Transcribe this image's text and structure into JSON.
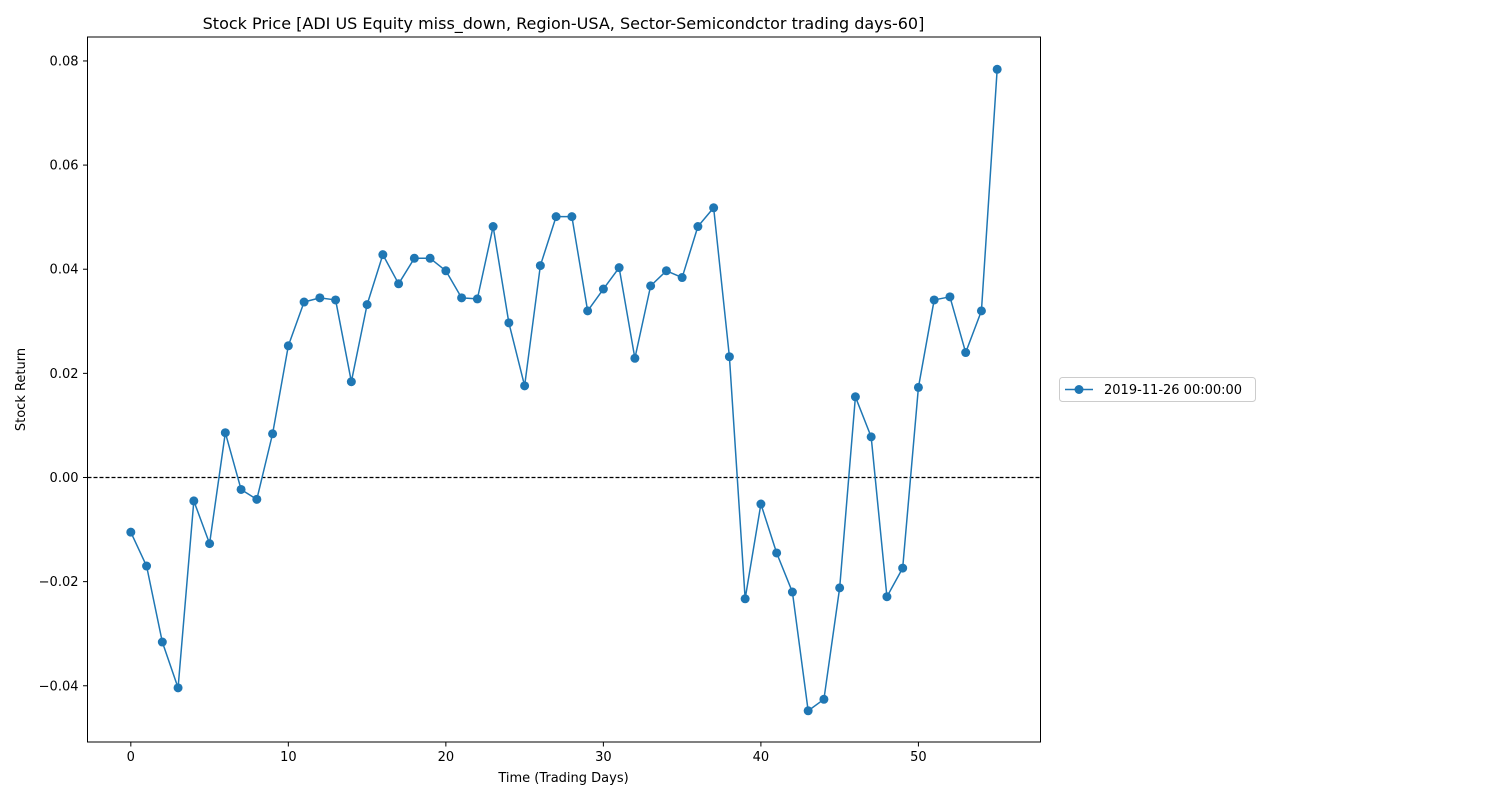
{
  "chart_data": {
    "type": "line",
    "title": "Stock Price [ADI US Equity miss_down, Region-USA, Sector-Semicondctor trading days-60]",
    "xlabel": "Time (Trading Days)",
    "ylabel": "Stock Return",
    "xlim": [
      -2.75,
      57.75
    ],
    "ylim": [
      -0.0508,
      0.0846
    ],
    "xticks": [
      0,
      10,
      20,
      30,
      40,
      50
    ],
    "yticks": [
      -0.04,
      -0.02,
      0.0,
      0.02,
      0.04,
      0.06,
      0.08
    ],
    "ytick_labels": [
      "−0.04",
      "−0.02",
      "0.00",
      "0.02",
      "0.04",
      "0.06",
      "0.08"
    ],
    "reference_line": {
      "y": 0.0,
      "style": "dashed",
      "color": "#000000"
    },
    "grid": false,
    "legend_position": "outside-right",
    "series": [
      {
        "name": "2019-11-26 00:00:00",
        "color": "#1f77b4",
        "marker": "circle",
        "x": [
          0,
          1,
          2,
          3,
          4,
          5,
          6,
          7,
          8,
          9,
          10,
          11,
          12,
          13,
          14,
          15,
          16,
          17,
          18,
          19,
          20,
          21,
          22,
          23,
          24,
          25,
          26,
          27,
          28,
          29,
          30,
          31,
          32,
          33,
          34,
          35,
          36,
          37,
          38,
          39,
          40,
          41,
          42,
          43,
          44,
          45,
          46,
          47,
          48,
          49,
          50,
          51,
          52,
          53,
          54,
          55
        ],
        "values": [
          -0.0105,
          -0.017,
          -0.0316,
          -0.0404,
          -0.0045,
          -0.0127,
          0.0086,
          -0.0023,
          -0.0042,
          0.0084,
          0.0253,
          0.0337,
          0.0345,
          0.0341,
          0.0184,
          0.0332,
          0.0428,
          0.0372,
          0.0421,
          0.0421,
          0.0397,
          0.0345,
          0.0343,
          0.0482,
          0.0297,
          0.0176,
          0.0407,
          0.0501,
          0.0501,
          0.032,
          0.0362,
          0.0403,
          0.0229,
          0.0368,
          0.0397,
          0.0384,
          0.0482,
          0.0518,
          0.0232,
          -0.0233,
          -0.0051,
          -0.0145,
          -0.022,
          -0.0448,
          -0.0426,
          -0.0212,
          0.0155,
          0.0078,
          -0.0229,
          -0.0174,
          0.0173,
          0.0341,
          0.0347,
          0.024,
          0.032,
          0.0784
        ]
      }
    ]
  }
}
